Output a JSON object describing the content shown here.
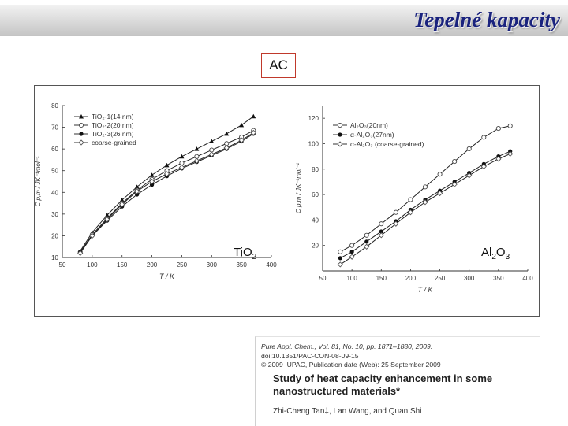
{
  "header": {
    "title": "Tepelné kapacity",
    "bar_color": "#d9d9d9",
    "title_color": "#1a237e"
  },
  "ac_box": {
    "label": "AC",
    "border_color": "#c0392b"
  },
  "chart_data": [
    {
      "type": "line",
      "overlay_label": "TiO",
      "overlay_label_sub": "2",
      "xlabel": "T / K",
      "ylabel": "C p,m / JK⁻¹mol⁻¹",
      "xlim": [
        50,
        400
      ],
      "ylim": [
        10,
        80
      ],
      "xticks": [
        50,
        100,
        150,
        200,
        250,
        300,
        350,
        400
      ],
      "yticks": [
        10,
        20,
        30,
        40,
        50,
        60,
        70,
        80
      ],
      "legend_position": "top-left",
      "series": [
        {
          "name": "TiO₂-1(14 nm)",
          "marker": "triangle",
          "x": [
            80,
            100,
            125,
            150,
            175,
            200,
            225,
            250,
            275,
            300,
            325,
            350,
            370
          ],
          "y": [
            13,
            21.5,
            29.5,
            36.5,
            42.5,
            48,
            52.5,
            56.5,
            60,
            63.5,
            67,
            71,
            75
          ]
        },
        {
          "name": "TiO₂-2(20 nm)",
          "marker": "open-circle",
          "x": [
            80,
            100,
            125,
            150,
            175,
            200,
            225,
            250,
            275,
            300,
            325,
            350,
            370
          ],
          "y": [
            12.5,
            20.5,
            28,
            35,
            41,
            46,
            50,
            53.5,
            56.5,
            59.5,
            62.5,
            65.5,
            68.5
          ]
        },
        {
          "name": "TiO₂-3(26 nm)",
          "marker": "filled-circle",
          "x": [
            80,
            100,
            125,
            150,
            175,
            200,
            225,
            250,
            275,
            300,
            325,
            350,
            370
          ],
          "y": [
            12.5,
            20,
            27,
            33.5,
            39,
            43.5,
            47.5,
            51,
            54,
            57,
            60,
            63.5,
            67
          ]
        },
        {
          "name": "coarse-grained",
          "marker": "open-diamond",
          "x": [
            80,
            100,
            125,
            150,
            175,
            200,
            225,
            250,
            275,
            300,
            325,
            350,
            370
          ],
          "y": [
            12,
            20,
            27.5,
            34.5,
            40.5,
            45,
            48.5,
            51.5,
            54.5,
            57.5,
            60.5,
            64,
            67.5
          ]
        }
      ]
    },
    {
      "type": "line",
      "overlay_label": "Al",
      "overlay_label_sub": "2",
      "overlay_label_mid": "O",
      "overlay_label_sub2": "3",
      "xlabel": "T / K",
      "ylabel": "C p,m / JK⁻¹mol⁻¹",
      "xlim": [
        50,
        400
      ],
      "ylim": [
        0,
        130
      ],
      "xticks": [
        50,
        100,
        150,
        200,
        250,
        300,
        350,
        400
      ],
      "yticks": [
        20,
        40,
        60,
        80,
        100,
        120
      ],
      "legend_position": "top-left",
      "series": [
        {
          "name": "Al₂O₃(20nm)",
          "marker": "open-circle",
          "x": [
            80,
            100,
            125,
            150,
            175,
            200,
            225,
            250,
            275,
            300,
            325,
            350,
            370
          ],
          "y": [
            15,
            20,
            28,
            37,
            46,
            56,
            66,
            76,
            86,
            96,
            105,
            112,
            114
          ]
        },
        {
          "name": "α-Al₂O₃(27nm)",
          "marker": "filled-circle",
          "x": [
            80,
            100,
            125,
            150,
            175,
            200,
            225,
            250,
            275,
            300,
            325,
            350,
            370
          ],
          "y": [
            10,
            15,
            23,
            31,
            39,
            48,
            56,
            63,
            70,
            77,
            84,
            90,
            94
          ]
        },
        {
          "name": "α-Al₂O₃ (coarse-grained)",
          "marker": "open-diamond",
          "x": [
            80,
            100,
            125,
            150,
            175,
            200,
            225,
            250,
            275,
            300,
            325,
            350,
            370
          ],
          "y": [
            5,
            11,
            19,
            28,
            37,
            46,
            54,
            61,
            68,
            75,
            82,
            88,
            92
          ]
        }
      ]
    }
  ],
  "citation": {
    "journal_line": "Pure Appl. Chem., Vol. 81, No. 10, pp. 1871–1880, 2009.",
    "doi_line": "doi:10.1351/PAC-CON-08-09-15",
    "copyright_line": "© 2009 IUPAC, Publication date (Web): 25 September 2009",
    "title": "Study of heat capacity enhancement in some nanostructured materials*",
    "authors": "Zhi-Cheng Tan‡, Lan Wang, and Quan Shi"
  }
}
